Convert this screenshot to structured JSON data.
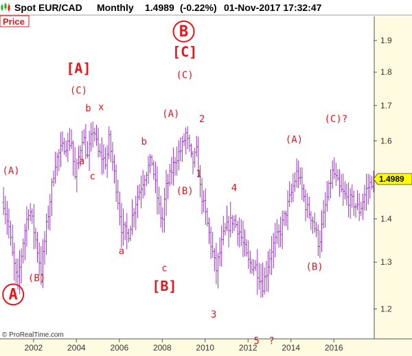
{
  "header": {
    "instrument": "Spot EUR/CAD",
    "timeframe": "Monthly",
    "last_price": "1.4989",
    "change": "(-0.22%)",
    "datetime": "01-Nov-2017 17:32:47"
  },
  "price_tag": "Price",
  "copyright": "© ProRealTime.com",
  "colors": {
    "bar": "#9b30c8",
    "label": "#e8141b",
    "axis_bg": "#fffbe0",
    "current_price_bg": "#ffff00"
  },
  "chart_data": {
    "type": "bar",
    "style": "ohlc-monthly",
    "x_range": [
      2000.5,
      2017.85
    ],
    "ylim": [
      1.14,
      1.98
    ],
    "y_ticks": [
      1.2,
      1.3,
      1.4,
      1.5,
      1.6,
      1.7,
      1.8,
      1.9
    ],
    "x_ticks": [
      2002,
      2004,
      2006,
      2008,
      2010,
      2012,
      2014,
      2016
    ],
    "current_price": "1.4989",
    "anchors": [
      [
        2000.6,
        1.44
      ],
      [
        2000.85,
        1.38
      ],
      [
        2001.0,
        1.32
      ],
      [
        2001.25,
        1.25
      ],
      [
        2001.55,
        1.36
      ],
      [
        2001.8,
        1.43
      ],
      [
        2002.1,
        1.35
      ],
      [
        2002.35,
        1.28
      ],
      [
        2002.7,
        1.42
      ],
      [
        2003.0,
        1.54
      ],
      [
        2003.3,
        1.58
      ],
      [
        2003.8,
        1.6
      ],
      [
        2003.9,
        1.49
      ],
      [
        2004.3,
        1.62
      ],
      [
        2004.5,
        1.55
      ],
      [
        2004.8,
        1.64
      ],
      [
        2005.0,
        1.57
      ],
      [
        2005.4,
        1.54
      ],
      [
        2005.5,
        1.61
      ],
      [
        2005.8,
        1.5
      ],
      [
        2006.1,
        1.38
      ],
      [
        2006.4,
        1.36
      ],
      [
        2006.75,
        1.44
      ],
      [
        2007.2,
        1.51
      ],
      [
        2007.5,
        1.55
      ],
      [
        2007.8,
        1.44
      ],
      [
        2008.0,
        1.39
      ],
      [
        2008.15,
        1.47
      ],
      [
        2008.6,
        1.55
      ],
      [
        2008.9,
        1.58
      ],
      [
        2009.1,
        1.62
      ],
      [
        2009.4,
        1.54
      ],
      [
        2009.6,
        1.57
      ],
      [
        2009.75,
        1.48
      ],
      [
        2010.2,
        1.36
      ],
      [
        2010.5,
        1.28
      ],
      [
        2010.9,
        1.37
      ],
      [
        2011.3,
        1.4
      ],
      [
        2011.6,
        1.37
      ],
      [
        2012.0,
        1.3
      ],
      [
        2012.35,
        1.29
      ],
      [
        2012.7,
        1.25
      ],
      [
        2013.1,
        1.33
      ],
      [
        2013.5,
        1.37
      ],
      [
        2014.0,
        1.46
      ],
      [
        2014.3,
        1.52
      ],
      [
        2014.7,
        1.43
      ],
      [
        2015.0,
        1.4
      ],
      [
        2015.3,
        1.34
      ],
      [
        2015.6,
        1.43
      ],
      [
        2015.95,
        1.52
      ],
      [
        2016.3,
        1.47
      ],
      [
        2016.6,
        1.45
      ],
      [
        2016.9,
        1.44
      ],
      [
        2017.2,
        1.42
      ],
      [
        2017.5,
        1.47
      ],
      [
        2017.85,
        1.5
      ]
    ],
    "annotations": [
      {
        "text": "(A)",
        "x": 2000.95,
        "y": 1.512,
        "size": "sm",
        "name": "wave-A-small-2001"
      },
      {
        "text": "(B)",
        "x": 2002.15,
        "y": 1.258,
        "size": "sm",
        "name": "wave-B-small-2002"
      },
      {
        "text": "A",
        "x": 2001.05,
        "y": 1.22,
        "size": "lg",
        "name": "wave-A-circled"
      },
      {
        "text": "[A]",
        "x": 2004.1,
        "y": 1.797,
        "size": "md",
        "name": "wave-A-bracket"
      },
      {
        "text": "(C)",
        "x": 2004.1,
        "y": 1.735,
        "size": "sm",
        "name": "wave-C-small-2004"
      },
      {
        "text": "b",
        "x": 2004.55,
        "y": 1.683,
        "size": "sm",
        "name": "wave-b-2004"
      },
      {
        "text": "x",
        "x": 2005.15,
        "y": 1.687,
        "size": "sm",
        "name": "wave-x-2005"
      },
      {
        "text": "a",
        "x": 2004.25,
        "y": 1.537,
        "size": "sm",
        "name": "wave-a-2004"
      },
      {
        "text": "c",
        "x": 2004.75,
        "y": 1.498,
        "size": "sm",
        "name": "wave-c-2004"
      },
      {
        "text": "a",
        "x": 2006.1,
        "y": 1.318,
        "size": "sm",
        "name": "wave-a-2006"
      },
      {
        "text": "b",
        "x": 2007.15,
        "y": 1.59,
        "size": "sm",
        "name": "wave-b-2007"
      },
      {
        "text": "c",
        "x": 2008.1,
        "y": 1.28,
        "size": "sm",
        "name": "wave-c-2008"
      },
      {
        "text": "[B]",
        "x": 2008.1,
        "y": 1.238,
        "size": "md",
        "name": "wave-B-bracket"
      },
      {
        "text": "(A)",
        "x": 2008.4,
        "y": 1.667,
        "size": "sm",
        "name": "wave-A-small-2008"
      },
      {
        "text": "B",
        "x": 2009.0,
        "y": 1.914,
        "size": "lg",
        "name": "wave-B-circled"
      },
      {
        "text": "[C]",
        "x": 2009.05,
        "y": 1.848,
        "size": "md",
        "name": "wave-C-bracket"
      },
      {
        "text": "(C)",
        "x": 2009.05,
        "y": 1.781,
        "size": "sm",
        "name": "wave-C-small-2009"
      },
      {
        "text": "(B)",
        "x": 2009.05,
        "y": 1.461,
        "size": "sm",
        "name": "wave-B-small-2009"
      },
      {
        "text": "2",
        "x": 2009.85,
        "y": 1.652,
        "size": "sm",
        "name": "wave-2-2009"
      },
      {
        "text": "1",
        "x": 2009.7,
        "y": 1.504,
        "size": "sm",
        "name": "wave-1-2009"
      },
      {
        "text": "3",
        "x": 2010.4,
        "y": 1.182,
        "size": "sm",
        "name": "wave-3-2010"
      },
      {
        "text": "4",
        "x": 2011.35,
        "y": 1.468,
        "size": "sm",
        "name": "wave-4-2011"
      },
      {
        "text": "5",
        "x": 2012.4,
        "y": 1.13,
        "size": "sm",
        "name": "wave-5-2012"
      },
      {
        "text": "?",
        "x": 2013.1,
        "y": 1.13,
        "size": "sm",
        "name": "wave-5-question"
      },
      {
        "text": "(A)",
        "x": 2014.15,
        "y": 1.595,
        "size": "sm",
        "name": "wave-A-small-2014"
      },
      {
        "text": "(B)",
        "x": 2015.1,
        "y": 1.283,
        "size": "sm",
        "name": "wave-B-small-2015"
      },
      {
        "text": "(C)?",
        "x": 2016.1,
        "y": 1.652,
        "size": "sm",
        "name": "wave-C-question-2016"
      }
    ]
  }
}
